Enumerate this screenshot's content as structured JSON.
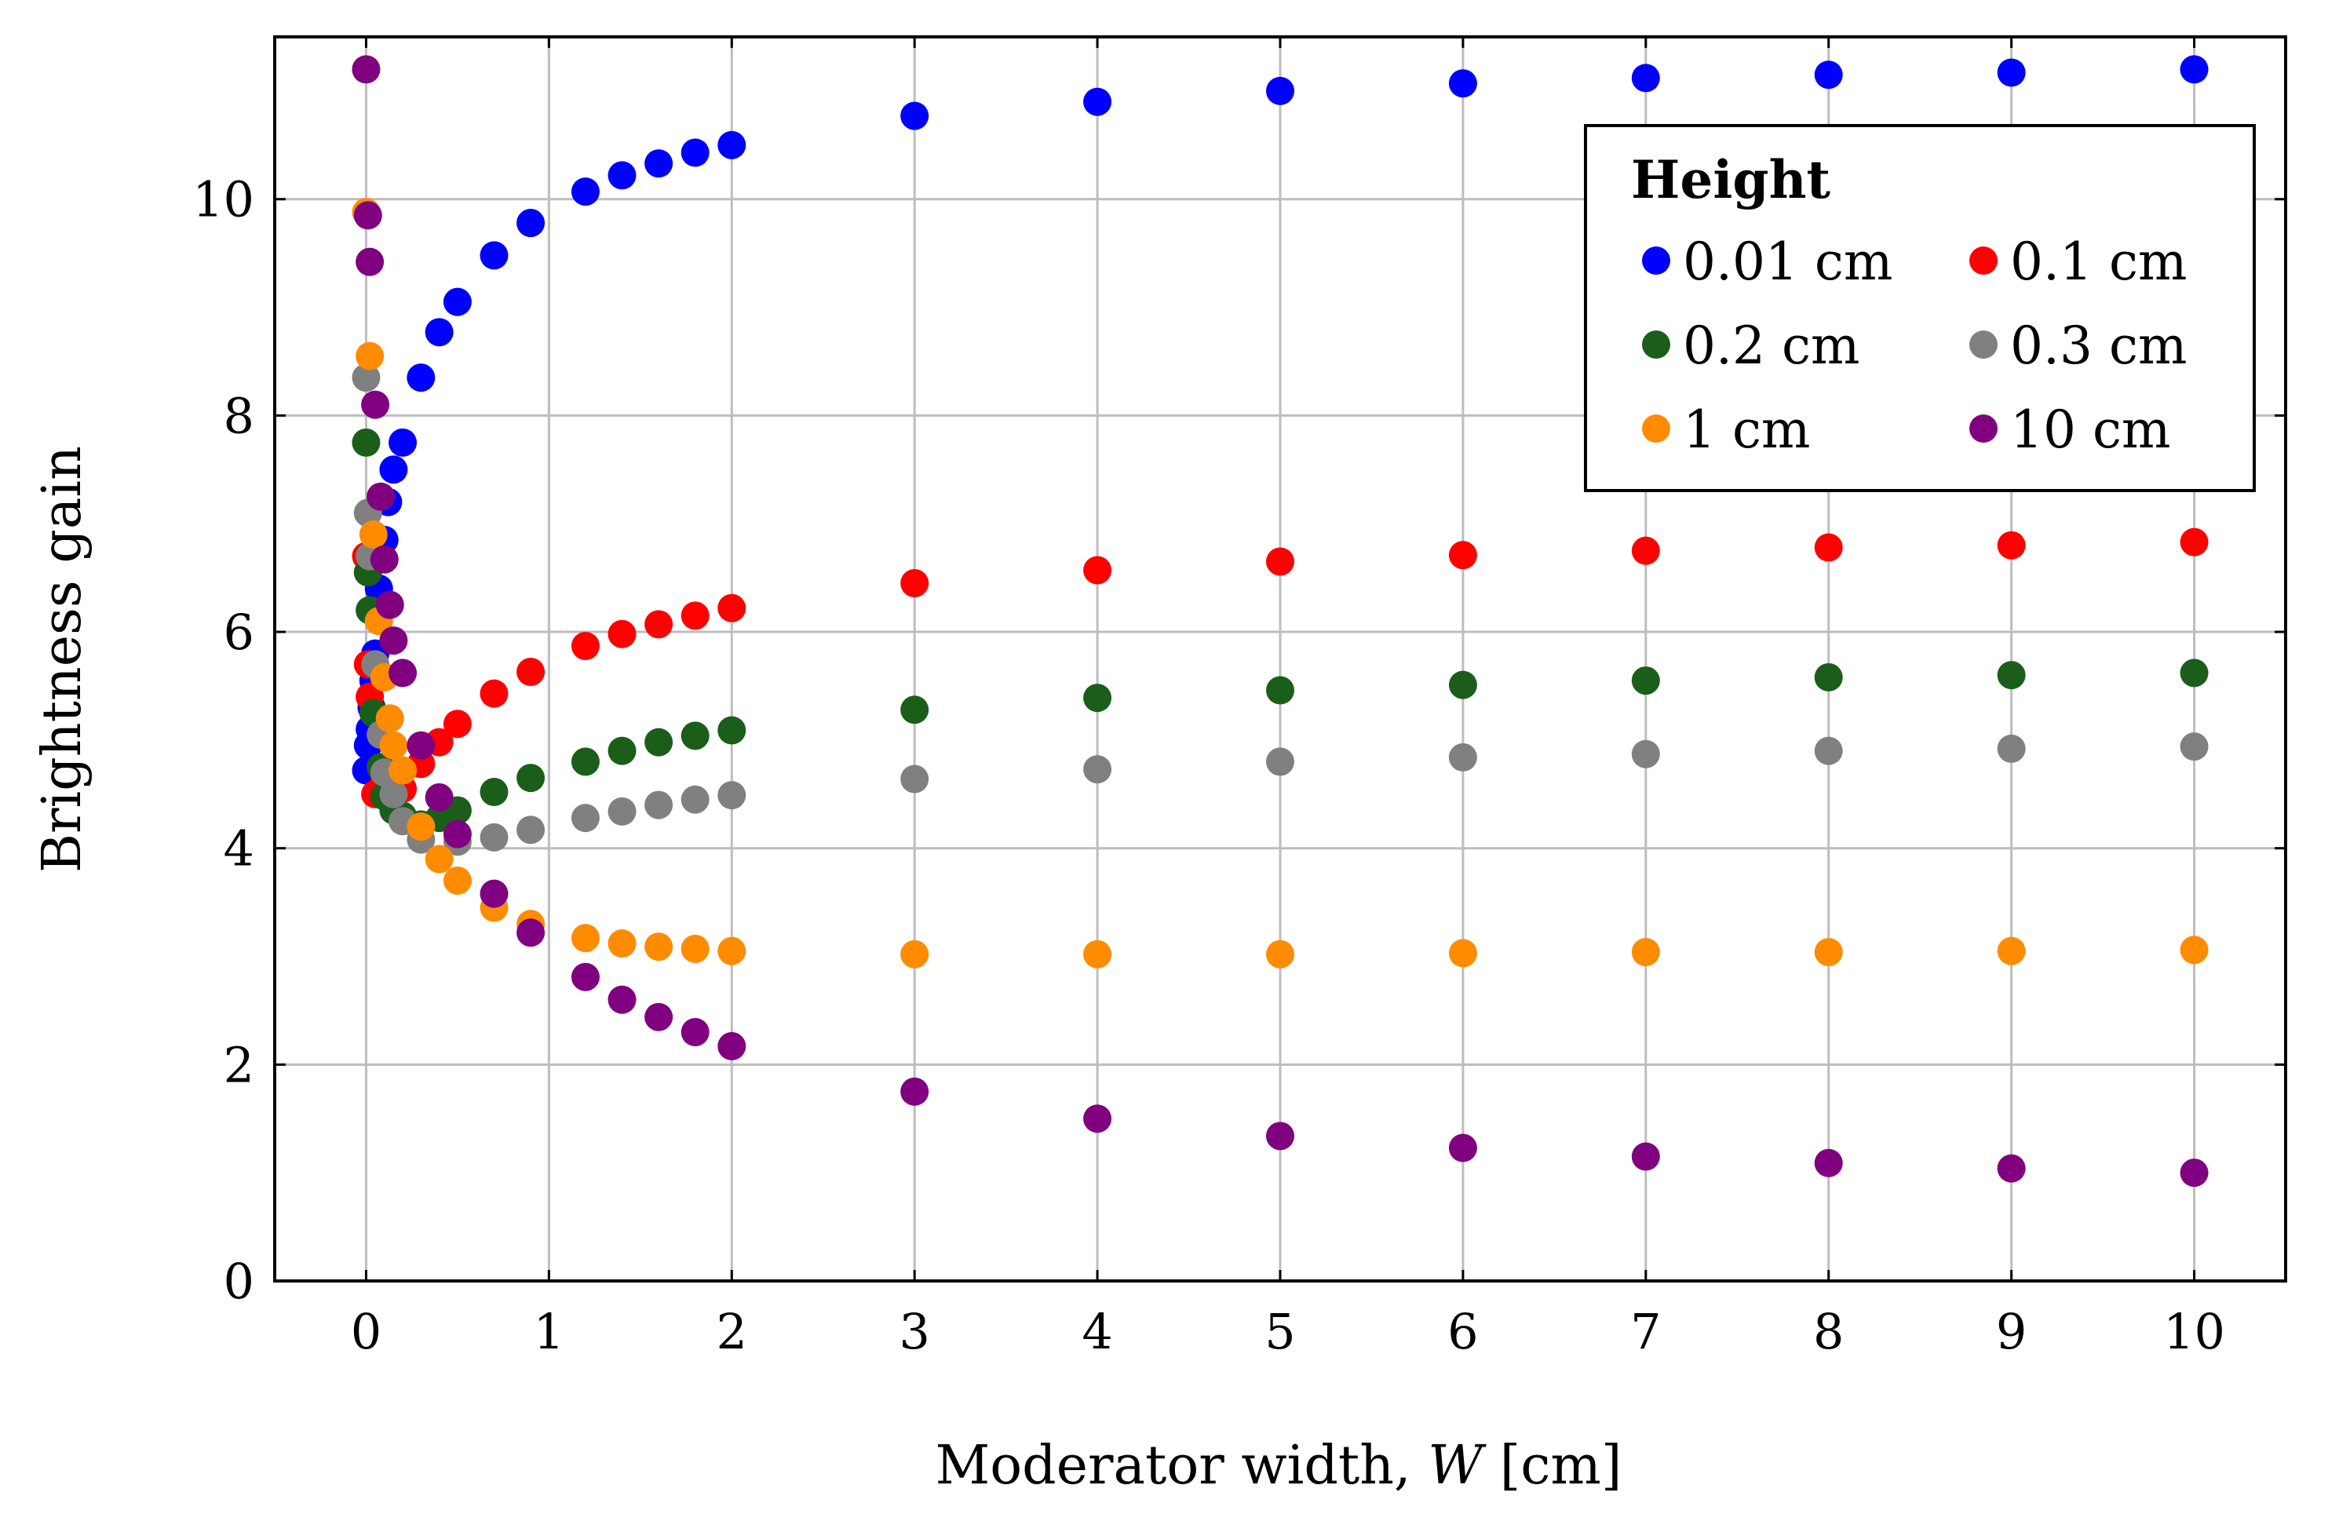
{
  "chart_data": {
    "type": "scatter",
    "title": "",
    "xlabel": "Moderator width, W [cm]",
    "xlabel_parts": {
      "prefix": "Moderator width, ",
      "symbol": "W",
      "suffix": " [cm]"
    },
    "ylabel": "Brightness gain",
    "xlim": [
      -0.5,
      10.5
    ],
    "ylim": [
      0,
      11.5
    ],
    "xticks": [
      "0",
      "1",
      "2",
      "3",
      "4",
      "5",
      "6",
      "7",
      "8",
      "9",
      "10"
    ],
    "yticks": [
      "0",
      "2",
      "4",
      "6",
      "8",
      "10"
    ],
    "grid": true,
    "legend": {
      "title": "Height",
      "position": "top-right",
      "columns": 2
    },
    "series": [
      {
        "name": "0.01 cm",
        "color": "#0000ff",
        "x": [
          0,
          0.01,
          0.02,
          0.03,
          0.04,
          0.05,
          0.07,
          0.1,
          0.12,
          0.15,
          0.2,
          0.3,
          0.4,
          0.5,
          0.7,
          0.9,
          1.2,
          1.4,
          1.6,
          1.8,
          2,
          3,
          4,
          5,
          6,
          7,
          8,
          9,
          10
        ],
        "y": [
          4.72,
          4.95,
          5.1,
          5.3,
          5.55,
          5.8,
          6.4,
          6.85,
          7.2,
          7.5,
          7.75,
          8.35,
          8.77,
          9.05,
          9.48,
          9.78,
          10.07,
          10.22,
          10.33,
          10.43,
          10.5,
          10.77,
          10.9,
          11.0,
          11.07,
          11.12,
          11.15,
          11.17,
          11.2
        ]
      },
      {
        "name": "0.1 cm",
        "color": "#ff0000",
        "x": [
          0,
          0.01,
          0.02,
          0.05,
          0.1,
          0.2,
          0.3,
          0.4,
          0.5,
          0.7,
          0.9,
          1.2,
          1.4,
          1.6,
          1.8,
          2,
          3,
          4,
          5,
          6,
          7,
          8,
          9,
          10
        ],
        "y": [
          6.7,
          5.7,
          5.4,
          4.5,
          4.62,
          4.55,
          4.78,
          4.98,
          5.15,
          5.43,
          5.63,
          5.87,
          5.98,
          6.07,
          6.15,
          6.22,
          6.45,
          6.57,
          6.65,
          6.71,
          6.75,
          6.78,
          6.8,
          6.83
        ]
      },
      {
        "name": "0.2 cm",
        "color": "#1a5e1a",
        "x": [
          0,
          0.01,
          0.02,
          0.04,
          0.08,
          0.1,
          0.15,
          0.2,
          0.3,
          0.4,
          0.5,
          0.7,
          0.9,
          1.2,
          1.4,
          1.6,
          1.8,
          2,
          3,
          4,
          5,
          6,
          7,
          8,
          9,
          10
        ],
        "y": [
          7.75,
          6.55,
          6.2,
          5.25,
          4.75,
          4.48,
          4.35,
          4.3,
          4.22,
          4.28,
          4.35,
          4.52,
          4.65,
          4.8,
          4.9,
          4.98,
          5.04,
          5.09,
          5.28,
          5.39,
          5.46,
          5.51,
          5.55,
          5.58,
          5.6,
          5.62
        ]
      },
      {
        "name": "0.3 cm",
        "color": "#808080",
        "x": [
          0,
          0.01,
          0.02,
          0.05,
          0.08,
          0.1,
          0.15,
          0.2,
          0.3,
          0.5,
          0.7,
          0.9,
          1.2,
          1.4,
          1.6,
          1.8,
          2,
          3,
          4,
          5,
          6,
          7,
          8,
          9,
          10
        ],
        "y": [
          8.35,
          7.1,
          6.7,
          5.7,
          5.05,
          4.7,
          4.5,
          4.25,
          4.08,
          4.06,
          4.1,
          4.17,
          4.28,
          4.34,
          4.4,
          4.45,
          4.49,
          4.64,
          4.73,
          4.8,
          4.84,
          4.87,
          4.9,
          4.92,
          4.94
        ]
      },
      {
        "name": "1 cm",
        "color": "#ff8c00",
        "x": [
          0,
          0.02,
          0.04,
          0.07,
          0.1,
          0.13,
          0.15,
          0.2,
          0.3,
          0.4,
          0.5,
          0.7,
          0.9,
          1.2,
          1.4,
          1.6,
          1.8,
          2,
          3,
          4,
          5,
          6,
          7,
          8,
          9,
          10
        ],
        "y": [
          9.88,
          8.55,
          6.9,
          6.1,
          5.58,
          5.2,
          4.95,
          4.72,
          4.2,
          3.9,
          3.7,
          3.45,
          3.3,
          3.17,
          3.12,
          3.09,
          3.07,
          3.05,
          3.02,
          3.02,
          3.02,
          3.03,
          3.04,
          3.04,
          3.05,
          3.06
        ]
      },
      {
        "name": "10 cm",
        "color": "#800080",
        "x": [
          0,
          0.01,
          0.02,
          0.05,
          0.08,
          0.1,
          0.13,
          0.15,
          0.2,
          0.3,
          0.4,
          0.5,
          0.7,
          0.9,
          1.2,
          1.4,
          1.6,
          1.8,
          2,
          3,
          4,
          5,
          6,
          7,
          8,
          9,
          10
        ],
        "y": [
          11.2,
          9.85,
          9.42,
          8.1,
          7.25,
          6.67,
          6.25,
          5.92,
          5.62,
          4.95,
          4.47,
          4.13,
          3.58,
          3.22,
          2.81,
          2.6,
          2.44,
          2.3,
          2.17,
          1.75,
          1.5,
          1.34,
          1.23,
          1.15,
          1.09,
          1.04,
          1.0
        ]
      }
    ]
  }
}
